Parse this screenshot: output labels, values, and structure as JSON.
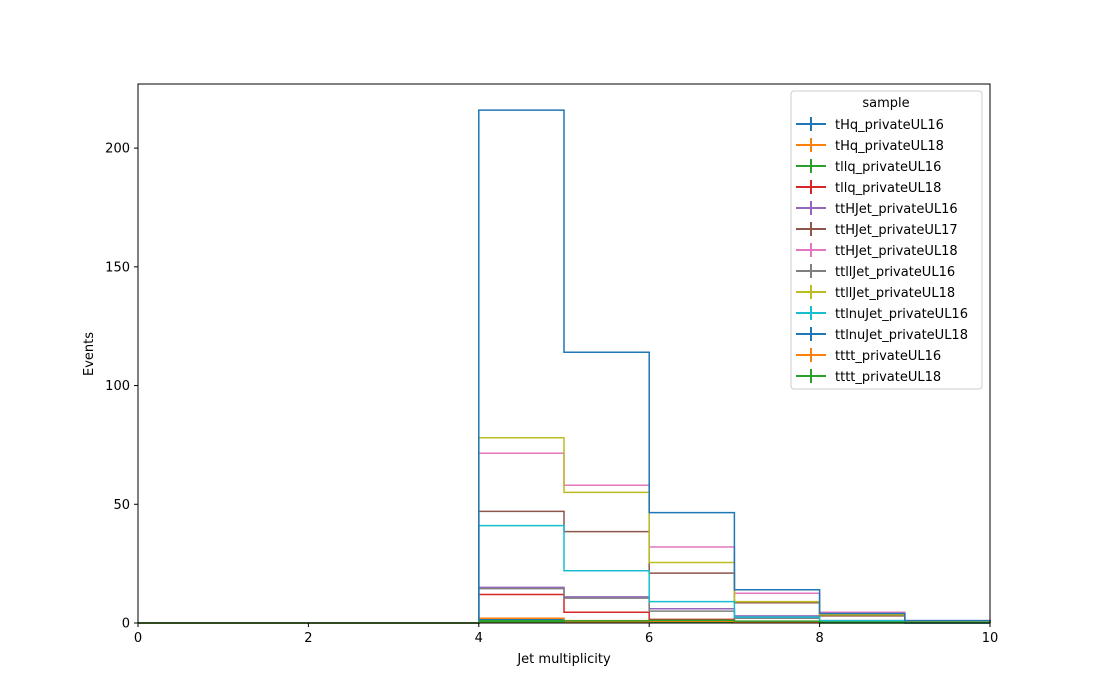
{
  "chart_data": {
    "type": "step",
    "xlabel": "Jet multiplicity",
    "ylabel": "Events",
    "xlim": [
      0,
      10
    ],
    "ylim": [
      0,
      227
    ],
    "x_ticks": [
      "0",
      "2",
      "4",
      "6",
      "8",
      "10"
    ],
    "y_ticks": [
      "0",
      "50",
      "100",
      "150",
      "200"
    ],
    "grid": false,
    "legend": {
      "title": "sample",
      "placement": "top-right"
    },
    "bin_edges": [
      0,
      1,
      2,
      3,
      4,
      5,
      6,
      7,
      8,
      9,
      10
    ],
    "series": [
      {
        "name": "tHq_privateUL16",
        "color": "#1f77b4",
        "values": [
          0,
          0,
          0,
          0,
          1.5,
          0.8,
          0.5,
          0.2,
          0.1,
          0
        ]
      },
      {
        "name": "tHq_privateUL18",
        "color": "#ff7f0e",
        "values": [
          0,
          0,
          0,
          0,
          2,
          1,
          0.7,
          0.3,
          0.1,
          0
        ]
      },
      {
        "name": "tllq_privateUL16",
        "color": "#2ca02c",
        "values": [
          0,
          0,
          0,
          0,
          1,
          0.5,
          0.3,
          0.1,
          0,
          0
        ]
      },
      {
        "name": "tllq_privateUL18",
        "color": "#d62728",
        "values": [
          0,
          0,
          0,
          0,
          12,
          4.5,
          1.5,
          0.5,
          0.2,
          0
        ]
      },
      {
        "name": "ttHJet_privateUL16",
        "color": "#9467bd",
        "values": [
          0,
          0,
          0,
          0,
          15,
          11,
          6,
          3,
          4.5,
          0.5
        ]
      },
      {
        "name": "ttHJet_privateUL17",
        "color": "#8c564b",
        "values": [
          0,
          0,
          0,
          0,
          47,
          38.5,
          21,
          8.5,
          3,
          0.5
        ]
      },
      {
        "name": "ttHJet_privateUL18",
        "color": "#e377c2",
        "values": [
          0,
          0,
          0,
          0,
          71.5,
          58,
          32,
          12.5,
          4.5,
          1
        ]
      },
      {
        "name": "ttllJet_privateUL16",
        "color": "#7f7f7f",
        "values": [
          0,
          0,
          0,
          0,
          14.5,
          10.5,
          5,
          2,
          1,
          0
        ]
      },
      {
        "name": "ttllJet_privateUL18",
        "color": "#bcbd22",
        "values": [
          0,
          0,
          0,
          0,
          78,
          55,
          25.5,
          9,
          3.5,
          0.5
        ]
      },
      {
        "name": "ttlnuJet_privateUL16",
        "color": "#17becf",
        "values": [
          0,
          0,
          0,
          0,
          41,
          22,
          9,
          2.5,
          1,
          0
        ]
      },
      {
        "name": "ttlnuJet_privateUL18",
        "color": "#1f77b4",
        "values": [
          0,
          0,
          0,
          0,
          216,
          114,
          46.5,
          14,
          4,
          1
        ]
      },
      {
        "name": "tttt_privateUL16",
        "color": "#ff7f0e",
        "values": [
          0,
          0,
          0,
          0,
          0.4,
          0.6,
          0.8,
          0.5,
          0.3,
          0.1
        ]
      },
      {
        "name": "tttt_privateUL18",
        "color": "#2ca02c",
        "values": [
          0,
          0,
          0,
          0,
          0.6,
          0.9,
          1.2,
          0.8,
          0.4,
          0.2
        ]
      }
    ]
  }
}
